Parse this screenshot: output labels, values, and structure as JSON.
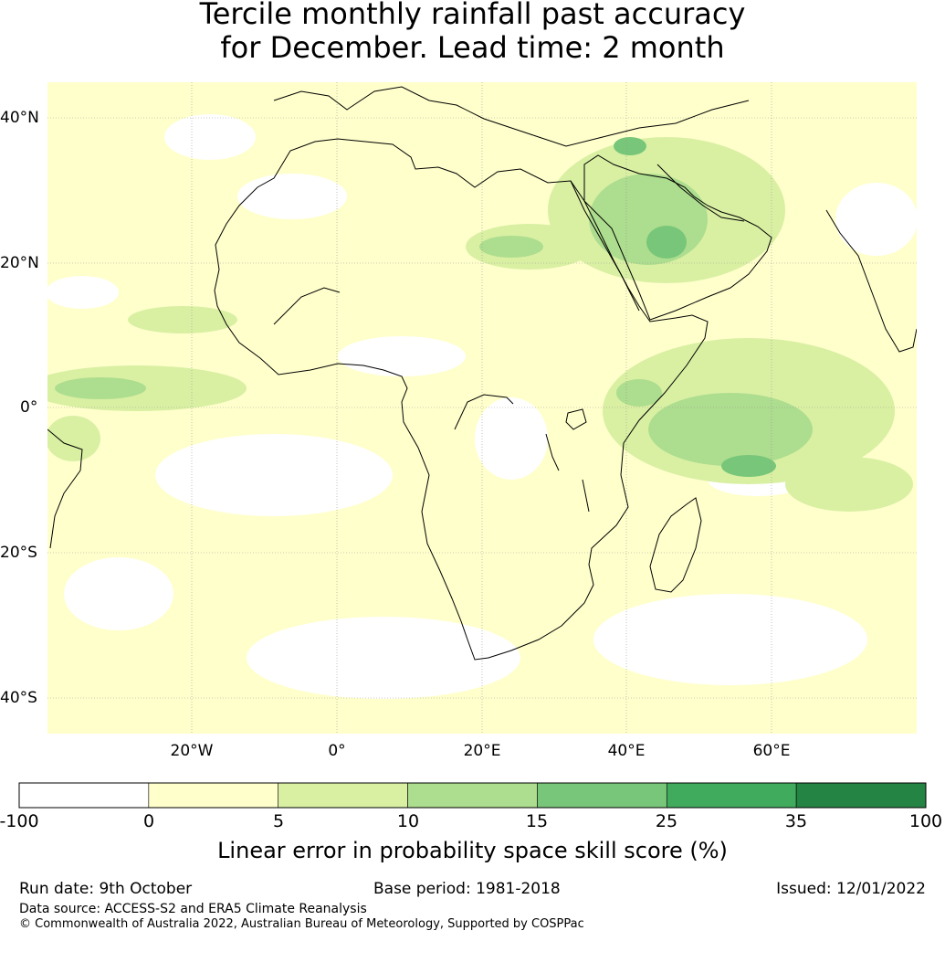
{
  "title": {
    "line1": "Tercile monthly rainfall past accuracy",
    "line2": "for December. Lead time: 2 month"
  },
  "map": {
    "lat_labels": [
      "40°N",
      "20°N",
      "0°",
      "20°S",
      "40°S"
    ],
    "lon_labels": [
      "20°W",
      "0°",
      "20°E",
      "40°E",
      "60°E"
    ]
  },
  "colorbar": {
    "tick_labels": [
      "-100",
      "0",
      "5",
      "10",
      "15",
      "25",
      "35",
      "100"
    ],
    "colors": [
      "#ffffff",
      "#ffffcc",
      "#d9f0a3",
      "#addd8e",
      "#78c679",
      "#41ab5d",
      "#238443"
    ],
    "title": "Linear error in probability space skill score (%)"
  },
  "footer": {
    "run_date": "Run date: 9th October",
    "base_period": "Base period: 1981-2018",
    "issued": "Issued: 12/01/2022",
    "data_source": "Data source: ACCESS-S2 and ERA5 Climate Reanalysis",
    "copyright": "© Commonwealth of Australia 2022, Australian Bureau of Meteorology, Supported by COSPPac"
  }
}
